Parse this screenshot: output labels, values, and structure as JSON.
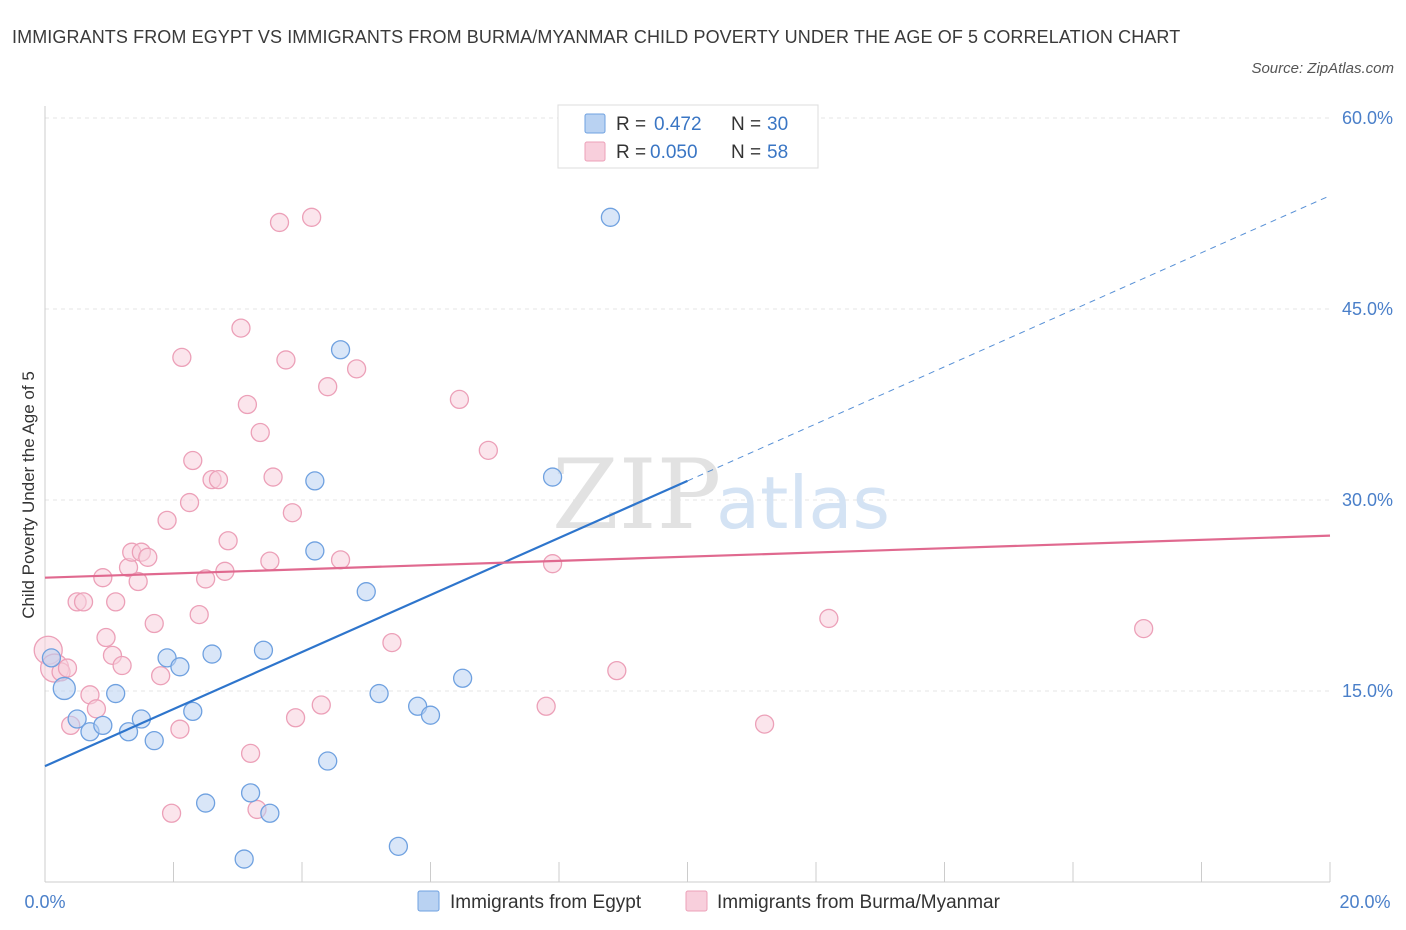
{
  "title": "IMMIGRANTS FROM EGYPT VS IMMIGRANTS FROM BURMA/MYANMAR CHILD POVERTY UNDER THE AGE OF 5 CORRELATION CHART",
  "source": "Source: ZipAtlas.com",
  "watermark": {
    "zip": "ZIP",
    "atlas": "atlas"
  },
  "chart_data": {
    "type": "scatter",
    "ylabel": "Child Poverty Under the Age of 5",
    "xlim": [
      0,
      20
    ],
    "ylim": [
      0,
      60
    ],
    "y_ticks": [
      {
        "value": 60,
        "label": "60.0%"
      },
      {
        "value": 45,
        "label": "45.0%"
      },
      {
        "value": 30,
        "label": "30.0%"
      },
      {
        "value": 15,
        "label": "15.0%"
      }
    ],
    "x_tick_labels": {
      "min": "0.0%",
      "max": "20.0%"
    },
    "grid": true,
    "legend": {
      "placement": "top-center",
      "entries": [
        {
          "series": "Immigrants from Egypt",
          "r_label": "R = ",
          "r_value": "0.472",
          "n_label": "N = ",
          "n_value": "30"
        },
        {
          "series": "Immigrants from Burma/Myanmar",
          "r_label": "R = ",
          "r_value": "0.050",
          "n_label": "N = ",
          "n_value": "58"
        }
      ]
    },
    "series": [
      {
        "name": "Immigrants from Egypt",
        "color": "#6fa1e0",
        "fill": "#b9d2f2",
        "line_color": "#2e75cc",
        "trend": {
          "x0": 0,
          "y0": 9.1,
          "x1": 10,
          "y1": 31.5,
          "dash_to_x": 20,
          "dash_to_y": 53.9
        },
        "points": [
          [
            0.1,
            17.6
          ],
          [
            0.3,
            15.2
          ],
          [
            0.5,
            12.8
          ],
          [
            0.7,
            11.8
          ],
          [
            0.9,
            12.3
          ],
          [
            1.1,
            14.8
          ],
          [
            1.3,
            11.8
          ],
          [
            1.5,
            12.8
          ],
          [
            1.7,
            11.1
          ],
          [
            1.9,
            17.6
          ],
          [
            2.1,
            16.9
          ],
          [
            2.3,
            13.4
          ],
          [
            2.5,
            6.2
          ],
          [
            2.6,
            17.9
          ],
          [
            3.1,
            1.8
          ],
          [
            3.2,
            7.0
          ],
          [
            3.4,
            18.2
          ],
          [
            3.5,
            5.4
          ],
          [
            4.2,
            26.0
          ],
          [
            4.2,
            31.5
          ],
          [
            4.4,
            9.5
          ],
          [
            4.6,
            41.8
          ],
          [
            5.0,
            22.8
          ],
          [
            5.2,
            14.8
          ],
          [
            5.5,
            2.8
          ],
          [
            5.8,
            13.8
          ],
          [
            6.0,
            13.1
          ],
          [
            6.5,
            16.0
          ],
          [
            7.9,
            31.8
          ],
          [
            8.8,
            52.2
          ]
        ]
      },
      {
        "name": "Immigrants from Burma/Myanmar",
        "color": "#eca0b8",
        "fill": "#f8cfdc",
        "line_color": "#e0698f",
        "trend": {
          "x0": 0,
          "y0": 23.9,
          "x1": 20,
          "y1": 27.2
        },
        "points": [
          [
            0.05,
            18.2
          ],
          [
            0.15,
            16.8
          ],
          [
            0.25,
            16.5
          ],
          [
            0.35,
            16.8
          ],
          [
            0.4,
            12.3
          ],
          [
            0.5,
            22.0
          ],
          [
            0.6,
            22.0
          ],
          [
            0.7,
            14.7
          ],
          [
            0.8,
            13.6
          ],
          [
            0.9,
            23.9
          ],
          [
            0.95,
            19.2
          ],
          [
            1.05,
            17.8
          ],
          [
            1.1,
            22.0
          ],
          [
            1.2,
            17.0
          ],
          [
            1.3,
            24.7
          ],
          [
            1.35,
            25.9
          ],
          [
            1.45,
            23.6
          ],
          [
            1.5,
            25.9
          ],
          [
            1.6,
            25.5
          ],
          [
            1.7,
            20.3
          ],
          [
            1.8,
            16.2
          ],
          [
            1.9,
            28.4
          ],
          [
            1.97,
            5.4
          ],
          [
            2.1,
            12.0
          ],
          [
            2.13,
            41.2
          ],
          [
            2.25,
            29.8
          ],
          [
            2.3,
            33.1
          ],
          [
            2.4,
            21.0
          ],
          [
            2.5,
            23.8
          ],
          [
            2.6,
            31.6
          ],
          [
            2.7,
            31.6
          ],
          [
            2.8,
            24.4
          ],
          [
            2.85,
            26.8
          ],
          [
            3.05,
            43.5
          ],
          [
            3.15,
            37.5
          ],
          [
            3.2,
            10.1
          ],
          [
            3.3,
            5.7
          ],
          [
            3.35,
            35.3
          ],
          [
            3.5,
            25.2
          ],
          [
            3.55,
            31.8
          ],
          [
            3.65,
            51.8
          ],
          [
            3.75,
            41.0
          ],
          [
            3.85,
            29.0
          ],
          [
            3.9,
            12.9
          ],
          [
            4.15,
            52.2
          ],
          [
            4.3,
            13.9
          ],
          [
            4.4,
            38.9
          ],
          [
            4.6,
            25.3
          ],
          [
            4.85,
            40.3
          ],
          [
            5.4,
            18.8
          ],
          [
            6.45,
            37.9
          ],
          [
            6.9,
            33.9
          ],
          [
            7.8,
            13.8
          ],
          [
            7.9,
            25.0
          ],
          [
            8.9,
            16.6
          ],
          [
            11.2,
            12.4
          ],
          [
            12.2,
            20.7
          ],
          [
            17.1,
            19.9
          ]
        ]
      }
    ]
  }
}
